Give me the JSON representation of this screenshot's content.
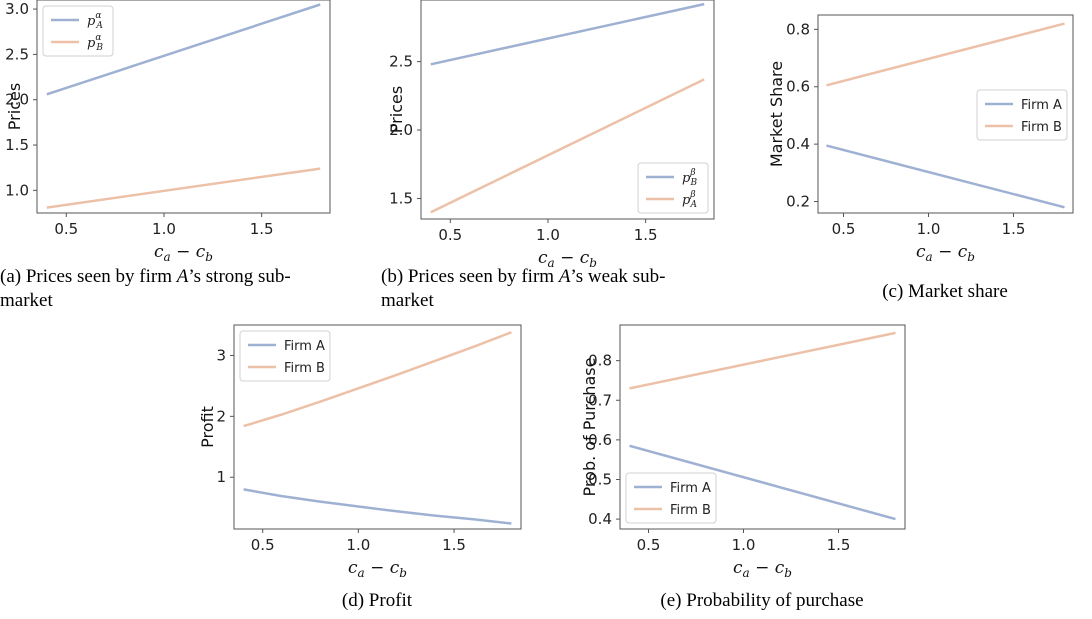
{
  "colors": {
    "firm_a": "#9fb1d3",
    "firm_b": "#ecc1a8",
    "axes": "#555555"
  },
  "chart_data": [
    {
      "type": "line",
      "ylabel": "Prices",
      "xlim": [
        0.35,
        1.85
      ],
      "ylim": [
        0.75,
        3.1
      ],
      "xticks": [
        "0.5",
        "1.0",
        "1.5"
      ],
      "xtick_values": [
        0.5,
        1.0,
        1.5
      ],
      "yticks": [
        "1.0",
        "1.5",
        "2.0",
        "2.5",
        "3.0"
      ],
      "ytick_values": [
        1.0,
        1.5,
        2.0,
        2.5,
        3.0
      ],
      "legend_position": "top-left",
      "caption_prefix": "(a) Prices seen by firm ",
      "caption_italic": "A",
      "caption_line1_rest": "’s strong sub-",
      "caption_line2": "market",
      "series": [
        {
          "name": "p",
          "sub": "A",
          "sup": "α",
          "color": "firm_a",
          "x": [
            0.4,
            1.8
          ],
          "y": [
            2.06,
            3.05
          ]
        },
        {
          "name": "p",
          "sub": "B",
          "sup": "α",
          "color": "firm_b",
          "x": [
            0.4,
            1.8
          ],
          "y": [
            0.81,
            1.24
          ]
        }
      ]
    },
    {
      "type": "line",
      "ylabel": "Prices",
      "xlim": [
        0.35,
        1.85
      ],
      "ylim": [
        1.35,
        2.95
      ],
      "xticks": [
        "0.5",
        "1.0",
        "1.5"
      ],
      "xtick_values": [
        0.5,
        1.0,
        1.5
      ],
      "yticks": [
        "1.5",
        "2.0",
        "2.5"
      ],
      "ytick_values": [
        1.5,
        2.0,
        2.5
      ],
      "legend_position": "bottom-right",
      "caption_prefix": "(b) Prices seen by firm ",
      "caption_italic": "A",
      "caption_line1_rest": "’s weak sub-",
      "caption_line2": "market",
      "series": [
        {
          "name": "p",
          "sub": "B",
          "sup": "β",
          "color": "firm_a",
          "x": [
            0.4,
            1.8
          ],
          "y": [
            2.48,
            2.92
          ]
        },
        {
          "name": "p",
          "sub": "A",
          "sup": "β",
          "color": "firm_b",
          "x": [
            0.4,
            1.8
          ],
          "y": [
            1.4,
            2.37
          ]
        }
      ]
    },
    {
      "type": "line",
      "ylabel": "Market Share",
      "xlim": [
        0.35,
        1.85
      ],
      "ylim": [
        0.16,
        0.85
      ],
      "xticks": [
        "0.5",
        "1.0",
        "1.5"
      ],
      "xtick_values": [
        0.5,
        1.0,
        1.5
      ],
      "yticks": [
        "0.2",
        "0.4",
        "0.6",
        "0.8"
      ],
      "ytick_values": [
        0.2,
        0.4,
        0.6,
        0.8
      ],
      "legend_position": "center-right",
      "caption_prefix": "(c) Market share",
      "caption_italic": "",
      "caption_line1_rest": "",
      "caption_line2": "",
      "series": [
        {
          "name": "Firm A",
          "color": "firm_a",
          "x": [
            0.4,
            1.8
          ],
          "y": [
            0.395,
            0.18
          ]
        },
        {
          "name": "Firm B",
          "color": "firm_b",
          "x": [
            0.4,
            1.8
          ],
          "y": [
            0.605,
            0.82
          ]
        }
      ]
    },
    {
      "type": "line",
      "ylabel": "Profit",
      "xlim": [
        0.35,
        1.85
      ],
      "ylim": [
        0.15,
        3.5
      ],
      "xticks": [
        "0.5",
        "1.0",
        "1.5"
      ],
      "xtick_values": [
        0.5,
        1.0,
        1.5
      ],
      "yticks": [
        "1",
        "2",
        "3"
      ],
      "ytick_values": [
        1,
        2,
        3
      ],
      "legend_position": "top-left",
      "caption_prefix": "(d) Profit",
      "caption_italic": "",
      "caption_line1_rest": "",
      "caption_line2": "",
      "series": [
        {
          "name": "Firm A",
          "color": "firm_a",
          "x": [
            0.4,
            0.6,
            0.8,
            1.0,
            1.2,
            1.4,
            1.6,
            1.8
          ],
          "y": [
            0.8,
            0.69,
            0.6,
            0.52,
            0.44,
            0.37,
            0.31,
            0.24
          ]
        },
        {
          "name": "Firm B",
          "color": "firm_b",
          "x": [
            0.4,
            0.6,
            0.8,
            1.0,
            1.2,
            1.4,
            1.6,
            1.8
          ],
          "y": [
            1.84,
            2.03,
            2.24,
            2.46,
            2.68,
            2.91,
            3.14,
            3.38
          ]
        }
      ]
    },
    {
      "type": "line",
      "ylabel": "Prob. of Purchase",
      "xlim": [
        0.35,
        1.85
      ],
      "ylim": [
        0.375,
        0.89
      ],
      "xticks": [
        "0.5",
        "1.0",
        "1.5"
      ],
      "xtick_values": [
        0.5,
        1.0,
        1.5
      ],
      "yticks": [
        "0.4",
        "0.5",
        "0.6",
        "0.7",
        "0.8"
      ],
      "ytick_values": [
        0.4,
        0.5,
        0.6,
        0.7,
        0.8
      ],
      "legend_position": "bottom-left",
      "caption_prefix": "(e) Probability of purchase",
      "caption_italic": "",
      "caption_line1_rest": "",
      "caption_line2": "",
      "series": [
        {
          "name": "Firm A",
          "color": "firm_a",
          "x": [
            0.4,
            1.8
          ],
          "y": [
            0.585,
            0.4
          ]
        },
        {
          "name": "Firm B",
          "color": "firm_b",
          "x": [
            0.4,
            1.8
          ],
          "y": [
            0.73,
            0.87
          ]
        }
      ]
    }
  ]
}
